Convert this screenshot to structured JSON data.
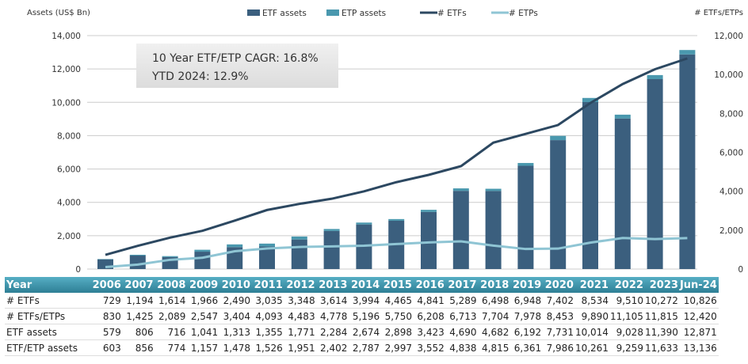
{
  "chart_data": {
    "type": "bar+line",
    "left_axis_label": "Assets (US$ Bn)",
    "right_axis_label": "# ETFs/ETPs",
    "left_ylim": [
      0,
      14000
    ],
    "right_ylim": [
      0,
      12000
    ],
    "left_ticks": [
      "0",
      "2,000",
      "4,000",
      "6,000",
      "8,000",
      "10,000",
      "12,000",
      "14,000"
    ],
    "right_ticks": [
      "0",
      "2,000",
      "4,000",
      "6,000",
      "8,000",
      "10,000",
      "12,000"
    ],
    "grid": true,
    "legend_placement": "top",
    "categories": [
      "2006",
      "2007",
      "2008",
      "2009",
      "2010",
      "2011",
      "2012",
      "2013",
      "2014",
      "2015",
      "2016",
      "2017",
      "2018",
      "2019",
      "2020",
      "2021",
      "2022",
      "2023",
      "Jun-24"
    ],
    "series": [
      {
        "name": "ETF assets",
        "type": "bar",
        "axis": "left",
        "color": "#3b5f7e",
        "values": [
          579,
          806,
          716,
          1041,
          1313,
          1355,
          1771,
          2284,
          2674,
          2898,
          3423,
          4690,
          4682,
          6192,
          7731,
          10014,
          9028,
          11390,
          12871
        ]
      },
      {
        "name": "ETP assets",
        "type": "bar-stacked",
        "axis": "left",
        "color": "#4a98ae",
        "values": [
          24,
          50,
          58,
          116,
          165,
          171,
          180,
          118,
          113,
          99,
          129,
          148,
          133,
          169,
          255,
          247,
          231,
          243,
          265
        ]
      },
      {
        "name": "# ETFs",
        "type": "line",
        "axis": "right",
        "color": "#2c4861",
        "values": [
          729,
          1194,
          1614,
          1966,
          2490,
          3035,
          3348,
          3614,
          3994,
          4465,
          4841,
          5289,
          6498,
          6948,
          7402,
          8534,
          9510,
          10272,
          10826
        ]
      },
      {
        "name": "# ETPs",
        "type": "line",
        "axis": "right",
        "color": "#8fc5d4",
        "values": [
          101,
          231,
          475,
          581,
          914,
          1058,
          1135,
          1164,
          1202,
          1285,
          1367,
          1424,
          1206,
          1030,
          1051,
          1356,
          1595,
          1543,
          1594
        ]
      }
    ],
    "annotation": {
      "line1": "10 Year ETF/ETP CAGR: 16.8%",
      "line2": "YTD 2024: 12.9%"
    },
    "table": {
      "header": "Year",
      "rows": [
        {
          "label": "# ETFs",
          "values": [
            "729",
            "1,194",
            "1,614",
            "1,966",
            "2,490",
            "3,035",
            "3,348",
            "3,614",
            "3,994",
            "4,465",
            "4,841",
            "5,289",
            "6,498",
            "6,948",
            "7,402",
            "8,534",
            "9,510",
            "10,272",
            "10,826"
          ]
        },
        {
          "label": "# ETFs/ETPs",
          "values": [
            "830",
            "1,425",
            "2,089",
            "2,547",
            "3,404",
            "4,093",
            "4,483",
            "4,778",
            "5,196",
            "5,750",
            "6,208",
            "6,713",
            "7,704",
            "7,978",
            "8,453",
            "9,890",
            "11,105",
            "11,815",
            "12,420"
          ]
        },
        {
          "label": "ETF assets",
          "values": [
            "579",
            "806",
            "716",
            "1,041",
            "1,313",
            "1,355",
            "1,771",
            "2,284",
            "2,674",
            "2,898",
            "3,423",
            "4,690",
            "4,682",
            "6,192",
            "7,731",
            "10,014",
            "9,028",
            "11,390",
            "12,871"
          ]
        },
        {
          "label": "ETF/ETP assets",
          "values": [
            "603",
            "856",
            "774",
            "1,157",
            "1,478",
            "1,526",
            "1,951",
            "2,402",
            "2,787",
            "2,997",
            "3,552",
            "4,838",
            "4,815",
            "6,361",
            "7,986",
            "10,261",
            "9,259",
            "11,633",
            "13,136"
          ]
        }
      ]
    }
  }
}
